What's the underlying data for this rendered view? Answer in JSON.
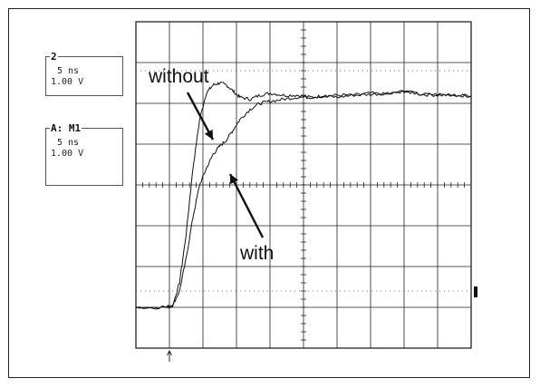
{
  "channel_boxes": [
    {
      "title": "2",
      "timebase": "5 ns",
      "voltage": "1.00 V"
    },
    {
      "title": "A: M1",
      "timebase": "5 ns",
      "voltage": "1.00 V"
    }
  ],
  "chart_data": {
    "type": "line",
    "title": "",
    "xlabel": "",
    "ylabel": "",
    "x_divisions": 10,
    "y_divisions": 8,
    "x_unit_per_div": "5 ns",
    "y_unit_per_div": "1.00 V",
    "xlim": [
      0,
      10
    ],
    "ylim": [
      -4,
      4
    ],
    "grid": true,
    "trigger_marker_x": 1.0,
    "annotations": [
      "without",
      "with"
    ],
    "series": [
      {
        "name": "without",
        "x": [
          0,
          0.9,
          1.1,
          1.3,
          1.5,
          1.7,
          1.9,
          2.1,
          2.3,
          2.5,
          2.7,
          2.9,
          3.1,
          3.4,
          3.7,
          4.0,
          4.4,
          4.8,
          5.2,
          5.6,
          6.0,
          6.5,
          7.0,
          7.5,
          8.0,
          8.5,
          9.0,
          9.5,
          10.0
        ],
        "y": [
          -3.0,
          -3.0,
          -2.95,
          -2.4,
          -1.2,
          0.4,
          1.6,
          2.25,
          2.45,
          2.5,
          2.45,
          2.3,
          2.15,
          2.1,
          2.2,
          2.25,
          2.2,
          2.2,
          2.15,
          2.18,
          2.2,
          2.2,
          2.25,
          2.22,
          2.3,
          2.22,
          2.2,
          2.2,
          2.18
        ]
      },
      {
        "name": "with",
        "x": [
          0,
          0.9,
          1.1,
          1.3,
          1.5,
          1.7,
          1.9,
          2.1,
          2.3,
          2.5,
          2.7,
          2.9,
          3.1,
          3.4,
          3.7,
          4.0,
          4.4,
          4.8,
          5.2,
          5.6,
          6.0,
          6.5,
          7.0,
          7.5,
          8.0,
          8.5,
          9.0,
          9.5,
          10.0
        ],
        "y": [
          -3.0,
          -3.0,
          -2.95,
          -2.6,
          -1.8,
          -0.8,
          0.0,
          0.4,
          0.75,
          0.95,
          1.1,
          1.35,
          1.6,
          1.85,
          2.0,
          2.05,
          2.1,
          2.15,
          2.15,
          2.18,
          2.15,
          2.2,
          2.22,
          2.25,
          2.3,
          2.22,
          2.22,
          2.2,
          2.18
        ]
      }
    ]
  }
}
